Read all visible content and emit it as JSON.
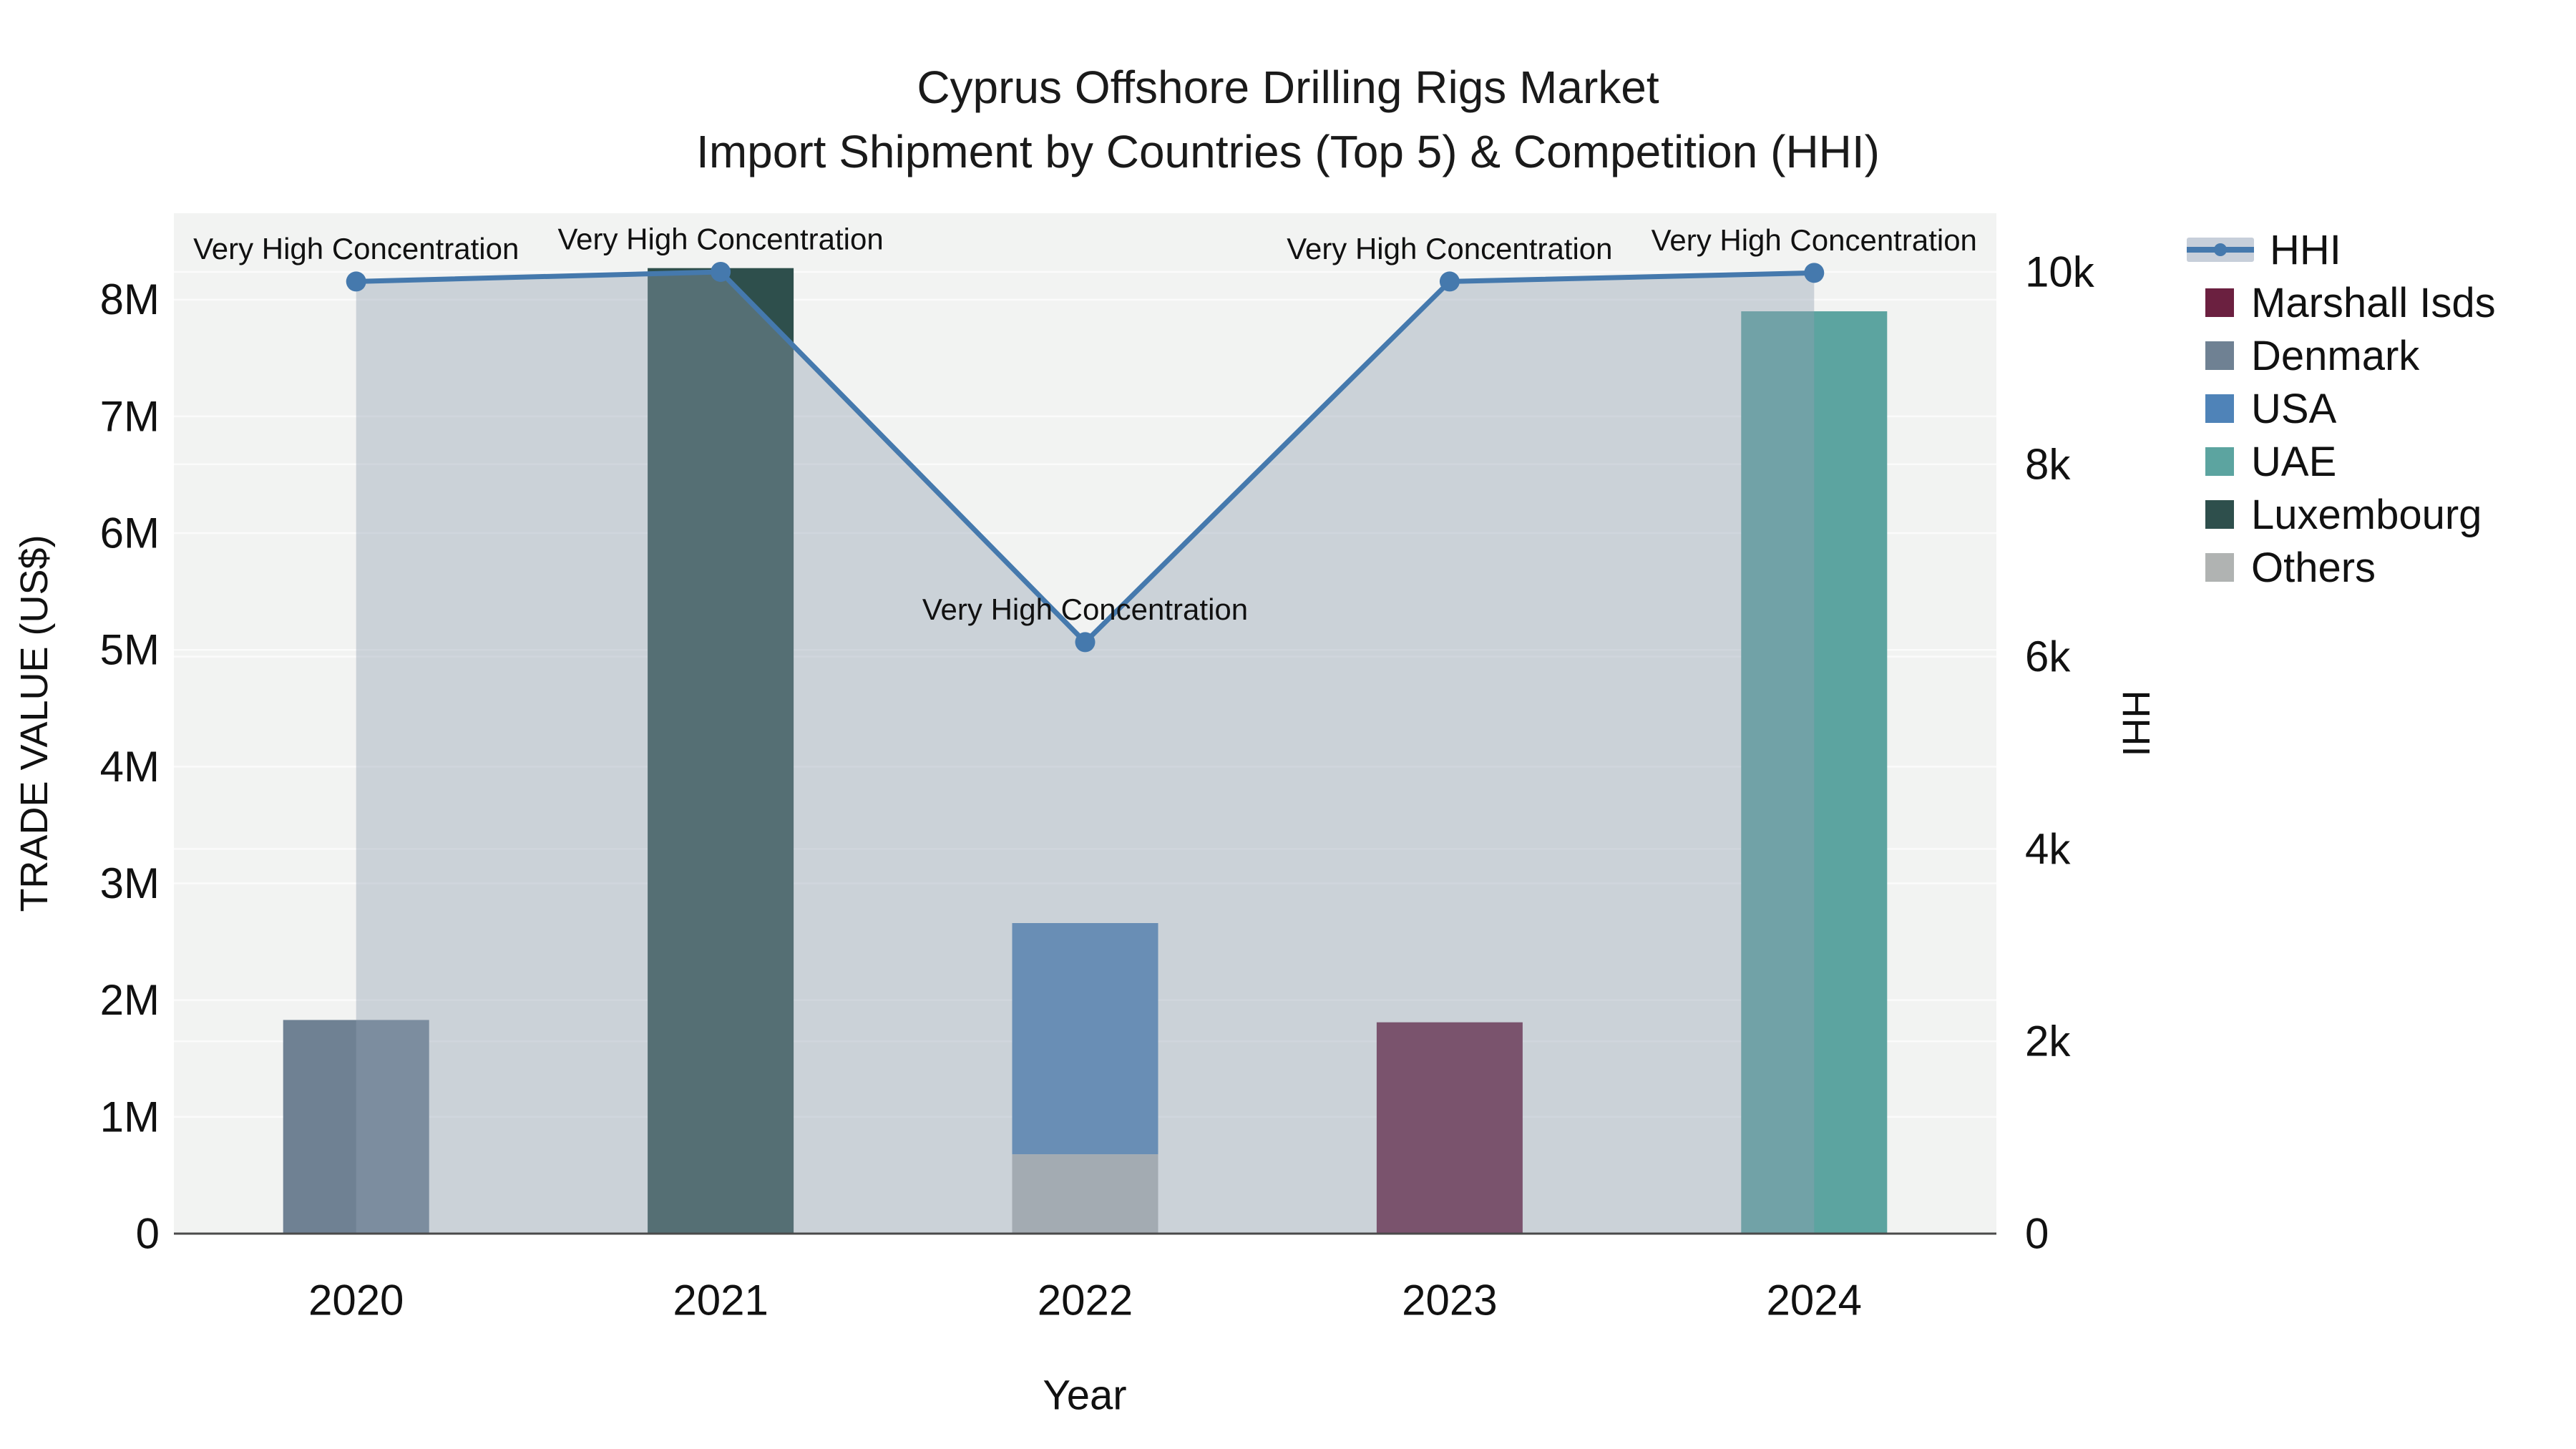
{
  "title": {
    "line1": "Cyprus Offshore Drilling Rigs Market",
    "line2": "Import Shipment by Countries (Top 5) & Competition (HHI)"
  },
  "chart_data": {
    "type": "bar+line dual-axis",
    "x_axis": {
      "label": "Year",
      "categories": [
        "2020",
        "2021",
        "2022",
        "2023",
        "2024"
      ]
    },
    "left_axis": {
      "label": "TRADE VALUE (US$)",
      "tick_labels": [
        "0",
        "1M",
        "2M",
        "3M",
        "4M",
        "5M",
        "6M",
        "7M",
        "8M"
      ],
      "tick_values": [
        0,
        1000000,
        2000000,
        3000000,
        4000000,
        5000000,
        6000000,
        7000000,
        8000000
      ],
      "range": [
        0,
        8740000
      ],
      "grid": true
    },
    "right_axis": {
      "label": "HHI",
      "tick_labels": [
        "0",
        "2k",
        "4k",
        "6k",
        "8k",
        "10k"
      ],
      "tick_values": [
        0,
        2000,
        4000,
        6000,
        8000,
        10000
      ],
      "range": [
        0,
        10610
      ],
      "grid": true
    },
    "bar_series": [
      {
        "name": "Denmark",
        "color": "#6f8193",
        "values": [
          1830000,
          0,
          0,
          0,
          0
        ]
      },
      {
        "name": "Luxembourg",
        "color": "#2e4f4c",
        "values": [
          0,
          8270000,
          0,
          0,
          0
        ]
      },
      {
        "name": "Others",
        "color": "#b0b3b2",
        "values": [
          0,
          0,
          680000,
          0,
          0
        ]
      },
      {
        "name": "USA",
        "color": "#4f83b8",
        "values": [
          0,
          0,
          1980000,
          0,
          0
        ]
      },
      {
        "name": "Marshall Isds",
        "color": "#6b2040",
        "values": [
          0,
          0,
          0,
          1810000,
          0
        ]
      },
      {
        "name": "UAE",
        "color": "#5ca4a0",
        "values": [
          0,
          0,
          0,
          0,
          7900000
        ]
      }
    ],
    "line_series": {
      "name": "HHI",
      "color": "#4579ad",
      "area_fill_color": "rgba(146,159,177,0.40)",
      "values": [
        9900,
        10000,
        6150,
        9900,
        9990
      ]
    },
    "annotations": [
      {
        "x": "2020",
        "text": "Very High Concentration"
      },
      {
        "x": "2021",
        "text": "Very High Concentration"
      },
      {
        "x": "2022",
        "text": "Very High Concentration"
      },
      {
        "x": "2023",
        "text": "Very High Concentration"
      },
      {
        "x": "2024",
        "text": "Very High Concentration"
      }
    ],
    "plot_bgcolor": "#f2f3f2",
    "gridline_color": "#fbfbfb",
    "baseline_color": "#4a4a4a",
    "legend_position": "right"
  },
  "legend": {
    "items": [
      {
        "label": "HHI",
        "glyph": "line",
        "color": "#4579ad"
      },
      {
        "label": "Marshall Isds",
        "glyph": "square",
        "color": "#6b2040"
      },
      {
        "label": "Denmark",
        "glyph": "square",
        "color": "#6f8193"
      },
      {
        "label": "USA",
        "glyph": "square",
        "color": "#4f83b8"
      },
      {
        "label": "UAE",
        "glyph": "square",
        "color": "#5ca4a0"
      },
      {
        "label": "Luxembourg",
        "glyph": "square",
        "color": "#2e4f4c"
      },
      {
        "label": "Others",
        "glyph": "square",
        "color": "#b0b3b2"
      }
    ]
  }
}
